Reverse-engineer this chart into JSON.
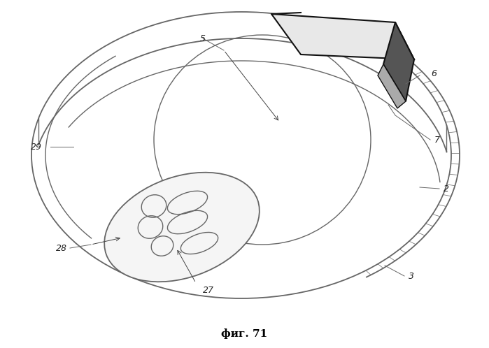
{
  "title": "фиг. 71",
  "background_color": "#ffffff",
  "line_color": "#666666",
  "dark_line_color": "#111111",
  "label_color": "#333333",
  "fig_width": 6.99,
  "fig_height": 4.98,
  "dpi": 100
}
